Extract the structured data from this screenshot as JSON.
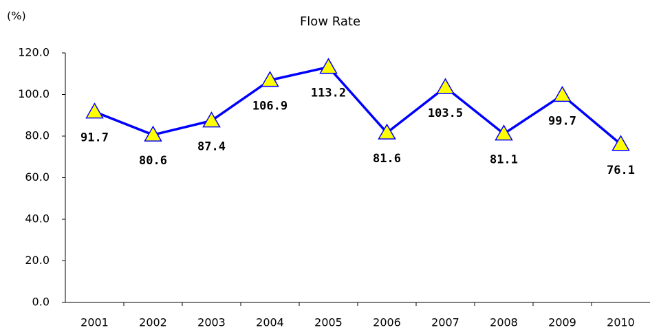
{
  "chart_data": {
    "type": "line",
    "title": "Flow Rate",
    "y_label": "(%)",
    "categories": [
      "2001",
      "2002",
      "2003",
      "2004",
      "2005",
      "2006",
      "2007",
      "2008",
      "2009",
      "2010"
    ],
    "series": [
      {
        "name": "Flow Rate",
        "color": "#0000ff",
        "marker_color": "#ffff00",
        "values": [
          91.7,
          80.6,
          87.4,
          106.9,
          113.2,
          81.6,
          103.5,
          81.1,
          99.7,
          76.1
        ]
      }
    ],
    "ylim": [
      0,
      120
    ],
    "yticks": [
      {
        "value": 0,
        "label": "0.0"
      },
      {
        "value": 20,
        "label": "20.0"
      },
      {
        "value": 40,
        "label": "40.0"
      },
      {
        "value": 60,
        "label": "60.0"
      },
      {
        "value": 80,
        "label": "80.0"
      },
      {
        "value": 100,
        "label": "100.0"
      },
      {
        "value": 120,
        "label": "120.0"
      }
    ],
    "grid": false
  }
}
